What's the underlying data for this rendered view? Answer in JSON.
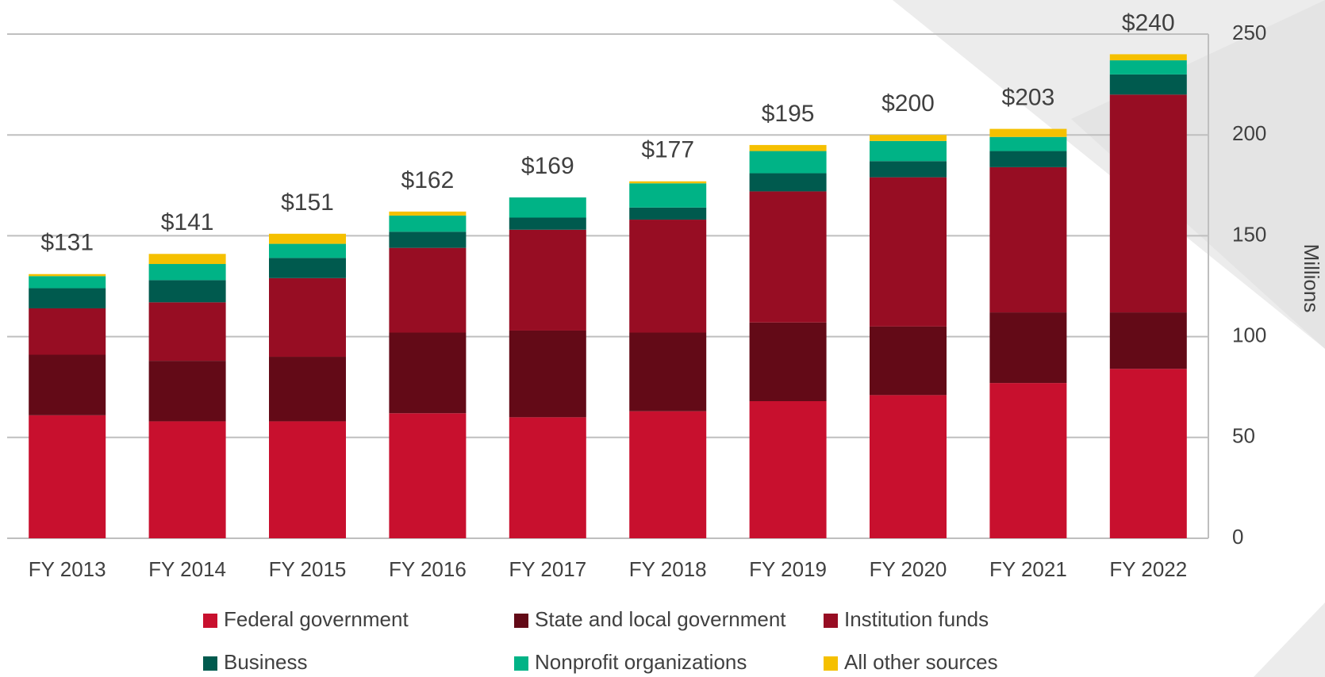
{
  "chart_data": {
    "type": "stacked_bar",
    "categories": [
      "FY 2013",
      "FY 2014",
      "FY 2015",
      "FY 2016",
      "FY 2017",
      "FY 2018",
      "FY 2019",
      "FY 2020",
      "FY 2021",
      "FY 2022"
    ],
    "series": [
      {
        "name": "Federal government",
        "color": "#c8102e",
        "values": [
          61,
          58,
          58,
          62,
          60,
          63,
          68,
          71,
          77,
          84
        ]
      },
      {
        "name": "State and local government",
        "color": "#630a17",
        "values": [
          30,
          30,
          32,
          40,
          43,
          39,
          39,
          34,
          35,
          28
        ]
      },
      {
        "name": "Institution funds",
        "color": "#970d23",
        "values": [
          23,
          29,
          39,
          42,
          50,
          56,
          65,
          74,
          72,
          108
        ]
      },
      {
        "name": "Business",
        "color": "#005a4e",
        "values": [
          10,
          11,
          10,
          8,
          6,
          6,
          9,
          8,
          8,
          10
        ]
      },
      {
        "name": "Nonprofit organizations",
        "color": "#00b386",
        "values": [
          6,
          8,
          7,
          8,
          10,
          12,
          11,
          10,
          7,
          7
        ]
      },
      {
        "name": "All other sources",
        "color": "#f5c000",
        "values": [
          1,
          5,
          5,
          2,
          0,
          1,
          3,
          3,
          4,
          3
        ]
      }
    ],
    "totals": [
      131,
      141,
      151,
      162,
      169,
      177,
      195,
      200,
      203,
      240
    ],
    "total_labels": [
      "$131",
      "$141",
      "$151",
      "$162",
      "$169",
      "$177",
      "$195",
      "$200",
      "$203",
      "$240"
    ],
    "ylim": [
      0,
      250
    ],
    "yticks": [
      0,
      50,
      100,
      150,
      200,
      250
    ],
    "y_axis_label": "Millions",
    "y_axis_side": "right",
    "grid": true,
    "legend": "bottom"
  }
}
